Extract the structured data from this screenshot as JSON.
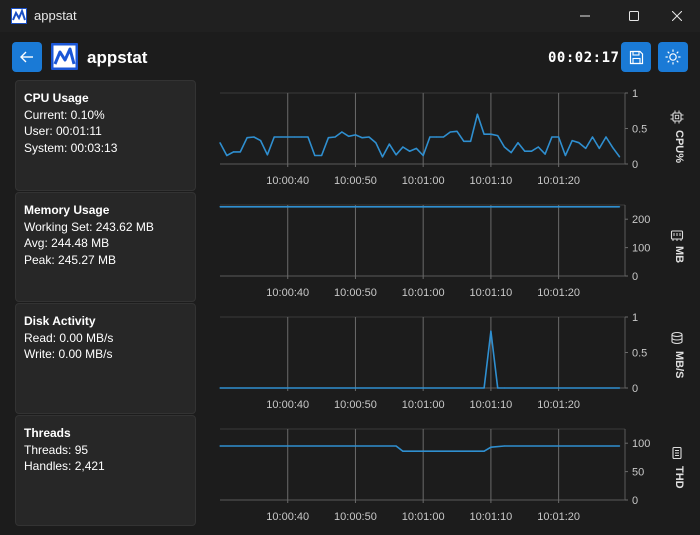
{
  "window": {
    "title": "appstat",
    "icon": "appstat-logo-icon",
    "controls": [
      "minimize-icon",
      "maximize-icon",
      "close-icon"
    ]
  },
  "header": {
    "back_icon": "arrow-left-icon",
    "title": "appstat",
    "elapsed": "00:02:17",
    "save_icon": "save-icon",
    "theme_icon": "sun-icon"
  },
  "colors": {
    "accent": "#1a7ad6",
    "series": "#2f8fd0",
    "background": "#1c1c1c",
    "card": "#272727"
  },
  "panels": [
    {
      "title": "CPU Usage",
      "lines": [
        "Current: 0.10%",
        "User: 00:01:11",
        "System: 00:03:13"
      ]
    },
    {
      "title": "Memory Usage",
      "lines": [
        "Working Set: 243.62 MB",
        "Avg: 244.48 MB",
        "Peak: 245.27 MB"
      ]
    },
    {
      "title": "Disk Activity",
      "lines": [
        "Read: 0.00 MB/s",
        "Write: 0.00 MB/s"
      ]
    },
    {
      "title": "Threads",
      "lines": [
        "Threads: 95",
        "Handles: 2,421"
      ]
    }
  ],
  "chart_data": [
    {
      "type": "line",
      "unit": "CPU%",
      "unit_icon": "cpu-chip-icon",
      "x_ticks": [
        "10:00:40",
        "10:00:50",
        "10:01:00",
        "10:01:10",
        "10:01:20"
      ],
      "y_ticks": [
        "1",
        "0.5",
        "0"
      ],
      "ylim": [
        0,
        1
      ],
      "x": [
        "10:00:30",
        "10:00:31",
        "10:00:32",
        "10:00:33",
        "10:00:34",
        "10:00:35",
        "10:00:36",
        "10:00:37",
        "10:00:38",
        "10:00:39",
        "10:00:40",
        "10:00:41",
        "10:00:42",
        "10:00:43",
        "10:00:44",
        "10:00:45",
        "10:00:46",
        "10:00:47",
        "10:00:48",
        "10:00:49",
        "10:00:50",
        "10:00:51",
        "10:00:52",
        "10:00:53",
        "10:00:54",
        "10:00:55",
        "10:00:56",
        "10:00:57",
        "10:00:58",
        "10:00:59",
        "10:01:00",
        "10:01:01",
        "10:01:02",
        "10:01:03",
        "10:01:04",
        "10:01:05",
        "10:01:06",
        "10:01:07",
        "10:01:08",
        "10:01:09",
        "10:01:10",
        "10:01:11",
        "10:01:12",
        "10:01:13",
        "10:01:14",
        "10:01:15",
        "10:01:16",
        "10:01:17",
        "10:01:18",
        "10:01:19",
        "10:01:20",
        "10:01:21",
        "10:01:22",
        "10:01:23",
        "10:01:24",
        "10:01:25",
        "10:01:26",
        "10:01:27",
        "10:01:28",
        "10:01:29"
      ],
      "values": [
        0.3,
        0.12,
        0.17,
        0.17,
        0.37,
        0.38,
        0.33,
        0.13,
        0.38,
        0.38,
        0.38,
        0.38,
        0.38,
        0.38,
        0.12,
        0.12,
        0.37,
        0.38,
        0.45,
        0.39,
        0.41,
        0.37,
        0.38,
        0.3,
        0.1,
        0.28,
        0.13,
        0.24,
        0.18,
        0.22,
        0.12,
        0.38,
        0.38,
        0.38,
        0.45,
        0.46,
        0.32,
        0.32,
        0.7,
        0.42,
        0.42,
        0.4,
        0.24,
        0.16,
        0.3,
        0.18,
        0.18,
        0.24,
        0.14,
        0.38,
        0.38,
        0.12,
        0.33,
        0.3,
        0.22,
        0.38,
        0.22,
        0.38,
        0.23,
        0.1
      ]
    },
    {
      "type": "line",
      "unit": "MB",
      "unit_icon": "memory-icon",
      "x_ticks": [
        "10:00:40",
        "10:00:50",
        "10:01:00",
        "10:01:10",
        "10:01:20"
      ],
      "y_ticks": [
        "200",
        "100",
        "0"
      ],
      "ylim": [
        0,
        250
      ],
      "x": [
        "10:00:30",
        "10:01:29"
      ],
      "values": [
        243.6,
        243.6
      ]
    },
    {
      "type": "line",
      "unit": "MB/S",
      "unit_icon": "disk-icon",
      "x_ticks": [
        "10:00:40",
        "10:00:50",
        "10:01:00",
        "10:01:10",
        "10:01:20"
      ],
      "y_ticks": [
        "1",
        "0.5",
        "0"
      ],
      "ylim": [
        0,
        1
      ],
      "x": [
        "10:00:30",
        "10:01:09",
        "10:01:10",
        "10:01:11",
        "10:01:12",
        "10:01:29"
      ],
      "values": [
        0,
        0,
        0.8,
        0,
        0,
        0
      ]
    },
    {
      "type": "line",
      "unit": "THD",
      "unit_icon": "threads-icon",
      "x_ticks": [
        "10:00:40",
        "10:00:50",
        "10:01:00",
        "10:01:10",
        "10:01:20"
      ],
      "y_ticks": [
        "100",
        "50",
        "0"
      ],
      "ylim": [
        0,
        125
      ],
      "x": [
        "10:00:30",
        "10:00:56",
        "10:00:57",
        "10:01:07",
        "10:01:09",
        "10:01:10",
        "10:01:12",
        "10:01:29"
      ],
      "values": [
        95,
        95,
        86,
        86,
        86,
        93,
        95,
        95
      ]
    }
  ]
}
